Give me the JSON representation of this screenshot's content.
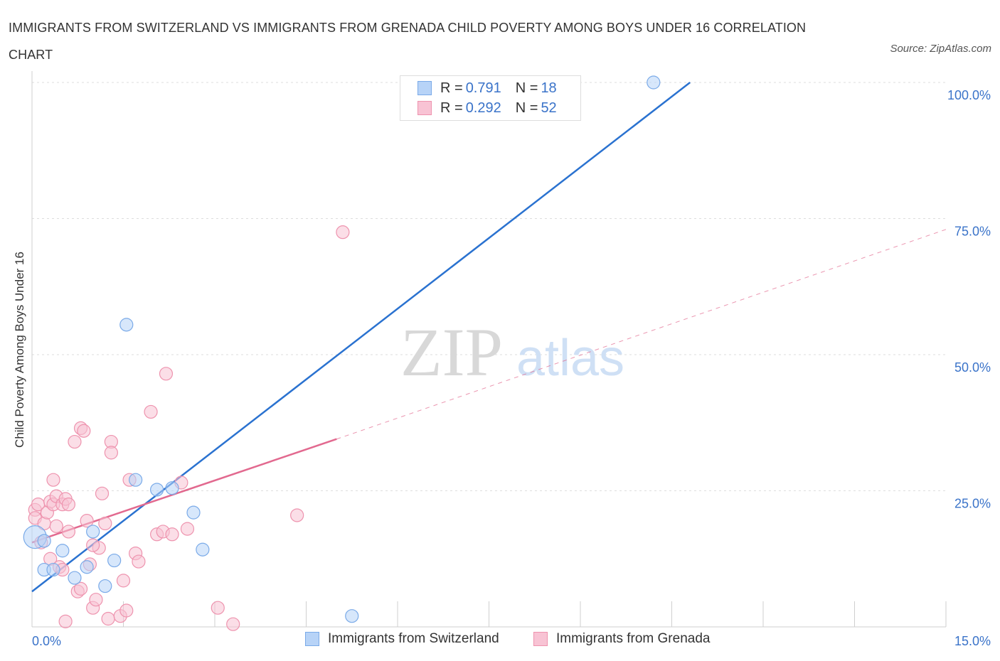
{
  "title": "IMMIGRANTS FROM SWITZERLAND VS IMMIGRANTS FROM GRENADA CHILD POVERTY AMONG BOYS UNDER 16 CORRELATION CHART",
  "source": "Source: ZipAtlas.com",
  "watermark": {
    "zip": "ZIP",
    "atlas": "atlas"
  },
  "legend": {
    "series1": {
      "r_label": "R =",
      "r_value": "0.791",
      "n_label": "N =",
      "n_value": "18"
    },
    "series2": {
      "r_label": "R =",
      "r_value": "0.292",
      "n_label": "N =",
      "n_value": "52"
    }
  },
  "colors": {
    "blue_fill": "#b7d3f7",
    "blue_stroke": "#7aaae8",
    "blue_line": "#2a72d0",
    "pink_fill": "#f8c3d4",
    "pink_stroke": "#ee93ae",
    "pink_line": "#e2698f",
    "axis_label": "#3a73c9",
    "grid": "#dddddd"
  },
  "chart_data": {
    "type": "scatter",
    "title": "IMMIGRANTS FROM SWITZERLAND VS IMMIGRANTS FROM GRENADA CHILD POVERTY AMONG BOYS UNDER 16 CORRELATION CHART",
    "xlabel": "",
    "ylabel": "Child Poverty Among Boys Under 16",
    "xlim": [
      0,
      15
    ],
    "ylim": [
      0,
      100
    ],
    "x_tick_labels": [
      "0.0%",
      "15.0%"
    ],
    "y_tick_labels": [
      "25.0%",
      "50.0%",
      "75.0%",
      "100.0%"
    ],
    "y_ticks": [
      25,
      50,
      75,
      100
    ],
    "legend_position": "top-center",
    "series": [
      {
        "name": "Immigrants from Switzerland",
        "color": "#7aaae8",
        "r": 0.791,
        "n": 18,
        "trend": {
          "x": [
            0,
            10.8
          ],
          "y": [
            6.5,
            100
          ]
        },
        "points": [
          [
            0.05,
            16.5,
            16
          ],
          [
            0.2,
            15.8,
            9
          ],
          [
            0.2,
            10.5,
            9
          ],
          [
            0.35,
            10.5,
            9
          ],
          [
            0.5,
            14.0,
            9
          ],
          [
            0.7,
            9.0,
            9
          ],
          [
            0.9,
            11.0,
            9
          ],
          [
            1.0,
            17.5,
            9
          ],
          [
            1.2,
            7.5,
            9
          ],
          [
            1.35,
            12.2,
            9
          ],
          [
            1.55,
            55.5,
            9
          ],
          [
            1.7,
            27.0,
            9
          ],
          [
            2.05,
            25.2,
            9
          ],
          [
            2.3,
            25.5,
            9
          ],
          [
            2.65,
            21.0,
            9
          ],
          [
            2.8,
            14.2,
            9
          ],
          [
            5.25,
            2.0,
            9
          ],
          [
            10.2,
            100.0,
            9
          ]
        ]
      },
      {
        "name": "Immigrants from Grenada",
        "color": "#ee93ae",
        "r": 0.292,
        "n": 52,
        "trend": {
          "x": [
            0,
            5.0
          ],
          "y": [
            15.5,
            34.5
          ]
        },
        "trend_dashed": {
          "x": [
            5.0,
            15.0
          ],
          "y": [
            34.5,
            73.0
          ]
        },
        "points": [
          [
            0.05,
            21.5,
            9
          ],
          [
            0.05,
            20.0,
            9
          ],
          [
            0.1,
            22.5,
            9
          ],
          [
            0.15,
            15.5,
            9
          ],
          [
            0.2,
            19.0,
            9
          ],
          [
            0.25,
            21.0,
            9
          ],
          [
            0.3,
            23.0,
            9
          ],
          [
            0.3,
            12.5,
            9
          ],
          [
            0.35,
            27.0,
            9
          ],
          [
            0.35,
            22.5,
            9
          ],
          [
            0.4,
            18.5,
            9
          ],
          [
            0.4,
            24.0,
            9
          ],
          [
            0.45,
            11.0,
            9
          ],
          [
            0.5,
            10.5,
            9
          ],
          [
            0.5,
            22.5,
            9
          ],
          [
            0.55,
            23.5,
            9
          ],
          [
            0.55,
            1.0,
            9
          ],
          [
            0.6,
            17.5,
            9
          ],
          [
            0.6,
            22.5,
            9
          ],
          [
            0.7,
            34.0,
            9
          ],
          [
            0.75,
            6.5,
            9
          ],
          [
            0.8,
            36.5,
            9
          ],
          [
            0.8,
            7.0,
            9
          ],
          [
            0.85,
            36.0,
            9
          ],
          [
            0.9,
            19.5,
            9
          ],
          [
            0.95,
            11.5,
            9
          ],
          [
            1.0,
            3.5,
            9
          ],
          [
            1.05,
            5.0,
            9
          ],
          [
            1.1,
            14.5,
            9
          ],
          [
            1.15,
            24.5,
            9
          ],
          [
            1.2,
            19.0,
            9
          ],
          [
            1.25,
            1.5,
            9
          ],
          [
            1.3,
            34.0,
            9
          ],
          [
            1.3,
            32.0,
            9
          ],
          [
            1.45,
            2.0,
            9
          ],
          [
            1.5,
            8.5,
            9
          ],
          [
            1.55,
            3.0,
            9
          ],
          [
            1.6,
            27.0,
            9
          ],
          [
            1.7,
            13.5,
            9
          ],
          [
            1.75,
            12.0,
            9
          ],
          [
            1.95,
            39.5,
            9
          ],
          [
            2.05,
            17.0,
            9
          ],
          [
            2.15,
            17.5,
            9
          ],
          [
            2.2,
            46.5,
            9
          ],
          [
            2.3,
            17.0,
            9
          ],
          [
            2.45,
            26.5,
            9
          ],
          [
            2.55,
            18.0,
            9
          ],
          [
            3.05,
            3.5,
            9
          ],
          [
            3.3,
            0.5,
            9
          ],
          [
            4.35,
            20.5,
            9
          ],
          [
            5.1,
            72.5,
            9
          ],
          [
            1.0,
            15.0,
            9
          ]
        ]
      }
    ]
  }
}
